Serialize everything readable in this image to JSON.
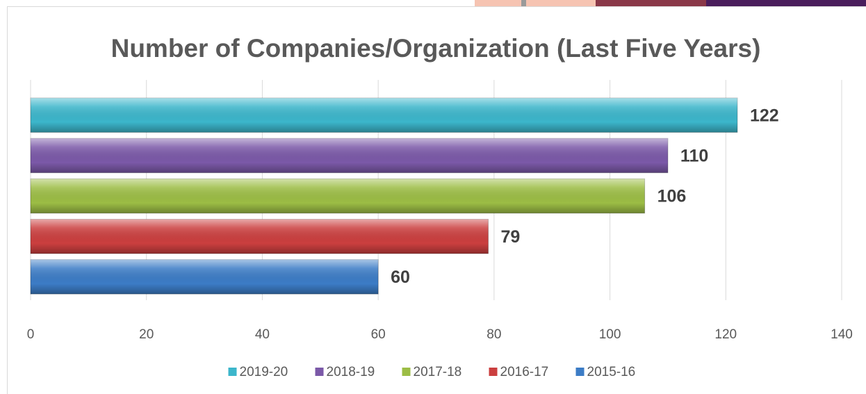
{
  "chart_data": {
    "type": "bar",
    "orientation": "horizontal",
    "title": "Number of Companies/Organization  (Last Five Years)",
    "series": [
      {
        "name": "2019-20",
        "color": "#3cb6cb",
        "values": [
          122
        ]
      },
      {
        "name": "2018-19",
        "color": "#7b59a8",
        "values": [
          110
        ]
      },
      {
        "name": "2017-18",
        "color": "#9cbd45",
        "values": [
          106
        ]
      },
      {
        "name": "2016-17",
        "color": "#cb3f3f",
        "values": [
          79
        ]
      },
      {
        "name": "2015-16",
        "color": "#3c7cc6",
        "values": [
          60
        ]
      }
    ],
    "xlim": [
      0,
      140
    ],
    "xticks": [
      0,
      20,
      40,
      60,
      80,
      100,
      120,
      140
    ],
    "grid": true,
    "legend": "bottom"
  }
}
